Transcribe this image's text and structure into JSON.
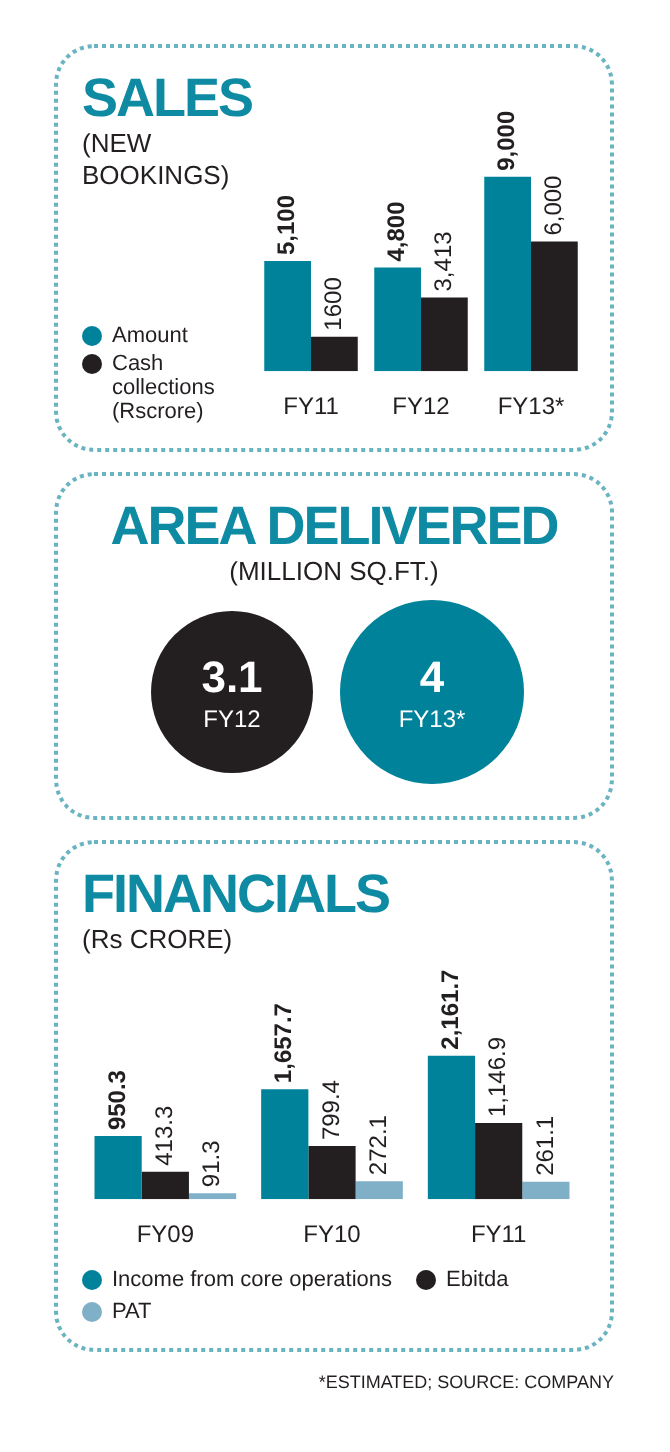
{
  "chart_data": [
    {
      "type": "bar",
      "title": "SALES",
      "subtitle": "(NEW BOOKINGS)",
      "categories": [
        "FY11",
        "FY12",
        "FY13*"
      ],
      "series": [
        {
          "name": "Amount",
          "color": "#00829b",
          "values": [
            5100,
            4800,
            9000
          ],
          "value_labels": [
            "5,100",
            "4,800",
            "9,000"
          ]
        },
        {
          "name": "Cash collections (Rscrore)",
          "color": "#231f20",
          "values": [
            1600,
            3413,
            6000
          ],
          "value_labels": [
            "1600",
            "3,413",
            "6,000"
          ]
        }
      ],
      "legend": "left"
    },
    {
      "type": "other",
      "title": "AREA DELIVERED",
      "subtitle": "(MILLION SQ.FT.)",
      "categories": [
        "FY12",
        "FY13*"
      ],
      "values": [
        3.1,
        4
      ],
      "colors": [
        "#231f20",
        "#00829b"
      ],
      "data_labels": true
    },
    {
      "type": "bar",
      "title": "FINANCIALS",
      "subtitle": "(Rs CRORE)",
      "categories": [
        "FY09",
        "FY10",
        "FY11"
      ],
      "series": [
        {
          "name": "Income from core operations",
          "color": "#00829b",
          "values": [
            950.3,
            1657.7,
            2161.7
          ],
          "value_labels": [
            "950.3",
            "1,657.7",
            "2,161.7"
          ]
        },
        {
          "name": "Ebitda",
          "color": "#231f20",
          "values": [
            413.3,
            799.4,
            1146.9
          ],
          "value_labels": [
            "413.3",
            "799.4",
            "1,146.9"
          ]
        },
        {
          "name": "PAT",
          "color": "#7fb0c8",
          "values": [
            91.3,
            272.1,
            261.1
          ],
          "value_labels": [
            "91.3",
            "272.1",
            "261.1"
          ]
        }
      ],
      "legend": "bottom",
      "annotations": [
        "*ESTIMATED; SOURCE: COMPANY"
      ]
    }
  ]
}
